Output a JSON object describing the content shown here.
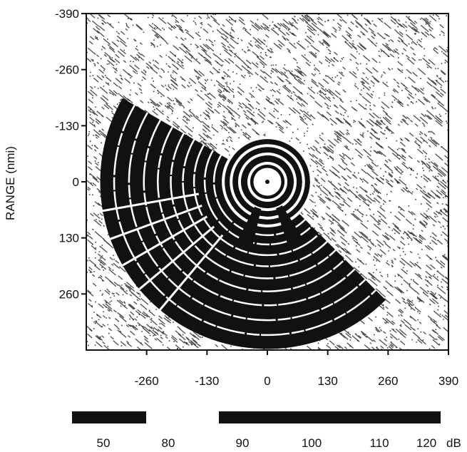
{
  "chart_data": {
    "type": "heatmap",
    "title": "",
    "ylabel": "RANGE (nmi)",
    "xlabel": "",
    "xlim": [
      -390,
      390
    ],
    "ylim": [
      -390,
      390
    ],
    "y_inverted": true,
    "x_ticks": [
      "-260",
      "-130",
      "0",
      "130",
      "260",
      "390"
    ],
    "y_ticks": [
      "-390",
      "-260",
      "-130",
      "0",
      "130",
      "260"
    ],
    "x_tick_values": [
      -260,
      -130,
      0,
      130,
      260,
      390
    ],
    "y_tick_values": [
      -390,
      -260,
      -130,
      0,
      130,
      260
    ],
    "coverage_sector": {
      "center": [
        0,
        0
      ],
      "outer_radius": 360,
      "inner_clear_radius": 30,
      "description_angles_deg": {
        "start": 150,
        "end": 315
      }
    },
    "notch_sectors": [
      {
        "angle_deg": 250,
        "r_inner": 60,
        "r_outer": 140
      },
      {
        "angle_deg": 295,
        "r_inner": 60,
        "r_outer": 140
      }
    ],
    "colorbar": {
      "tick_labels": [
        "50",
        "80",
        "90",
        "100",
        "110",
        "120"
      ],
      "unit": "dB",
      "segments": [
        {
          "from": "50",
          "to": "80"
        },
        {
          "from": "90",
          "to": "120"
        }
      ]
    },
    "colors": {
      "foreground": "#111111",
      "background": "#ffffff"
    }
  }
}
